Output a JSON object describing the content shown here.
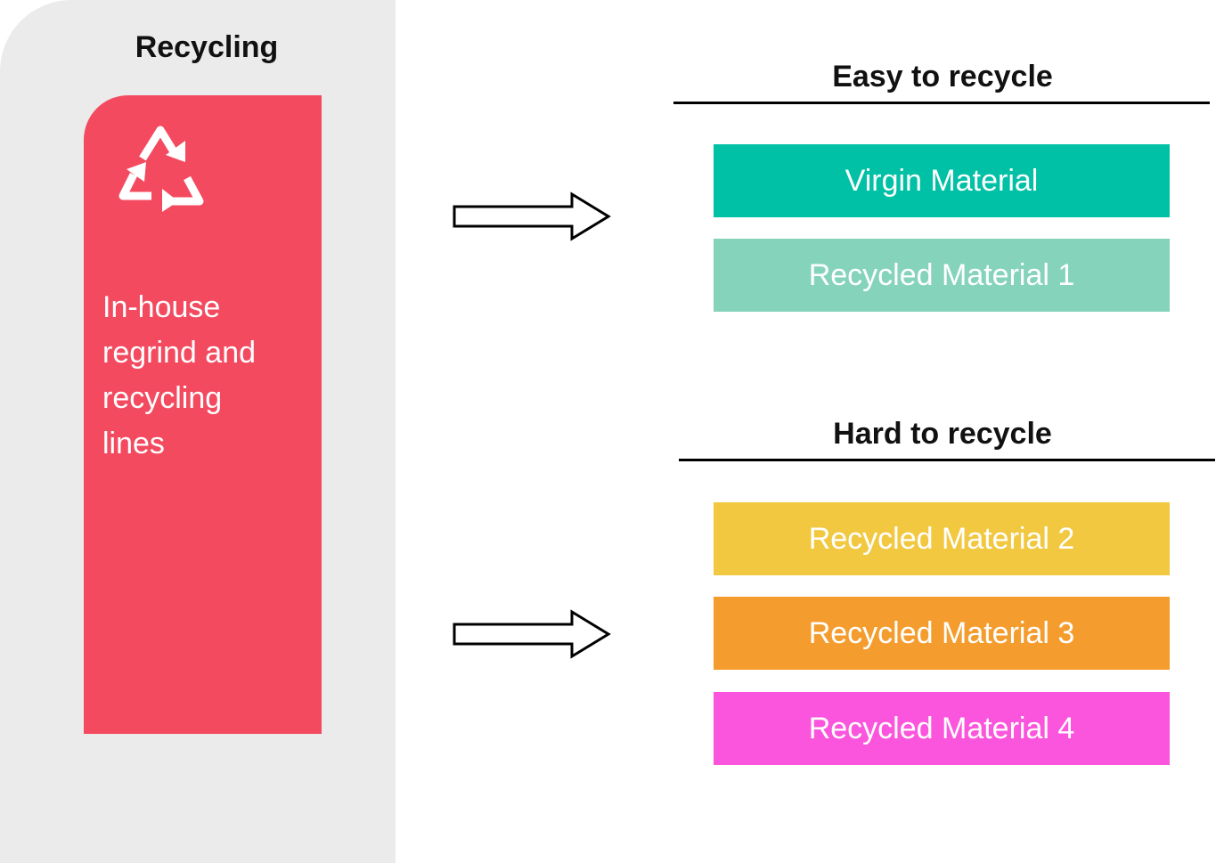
{
  "panel": {
    "title": "Recycling",
    "card": {
      "lines": [
        "In-house",
        "regrind and",
        "recycling",
        "lines"
      ]
    }
  },
  "groups": [
    {
      "heading": "Easy to recycle",
      "items": [
        "Virgin Material",
        "Recycled Material 1"
      ]
    },
    {
      "heading": "Hard to recycle",
      "items": [
        "Recycled Material 2",
        "Recycled Material 3",
        "Recycled Material 4"
      ]
    }
  ]
}
